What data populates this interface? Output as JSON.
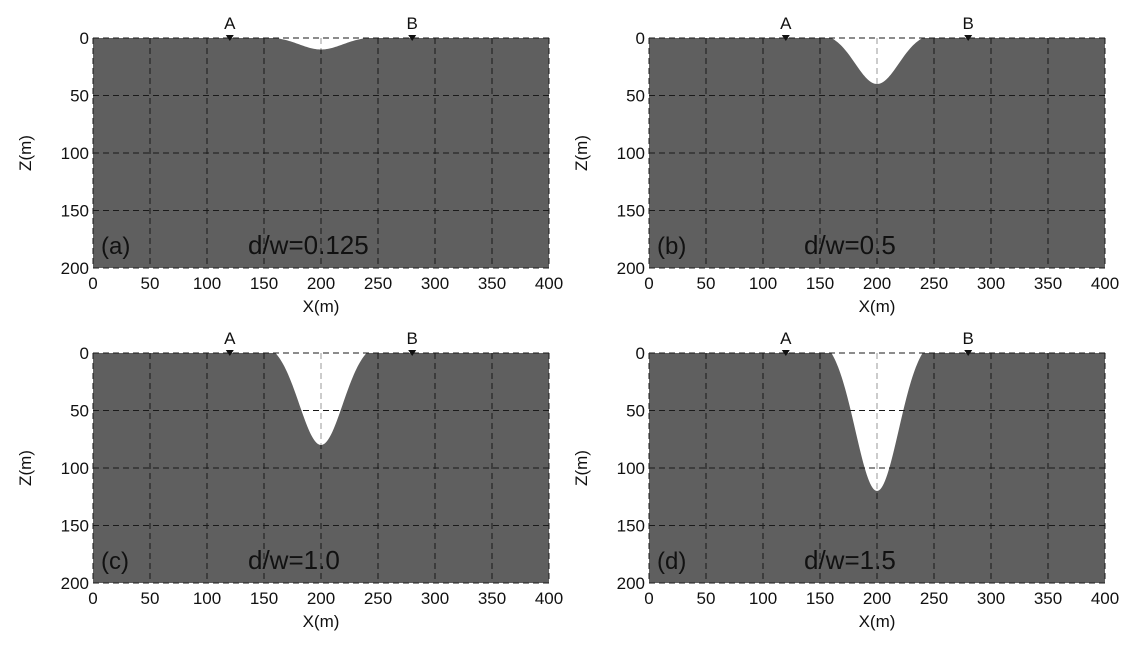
{
  "figure": {
    "colors": {
      "medium": "#5f5f5f",
      "void": "#ffffff",
      "grid": "#1a1a1a",
      "text": "#111111"
    }
  },
  "chart_data": [
    {
      "type": "area",
      "panel_label": "(a)",
      "ratio_label": "d/w=0.125",
      "xlabel": "X(m)",
      "ylabel": "Z(m)",
      "xlim": [
        0,
        400
      ],
      "ylim": [
        0,
        200
      ],
      "y_inverted": true,
      "x_ticks": [
        "0",
        "50",
        "100",
        "150",
        "200",
        "250",
        "300",
        "350",
        "400"
      ],
      "y_ticks": [
        "0",
        "50",
        "100",
        "150",
        "200"
      ],
      "grid": true,
      "markers": [
        {
          "label": "A",
          "x": 120,
          "z": 0
        },
        {
          "label": "B",
          "x": 280,
          "z": 0
        }
      ],
      "depression": {
        "center_x": 200,
        "width": 80,
        "depth": 10
      }
    },
    {
      "type": "area",
      "panel_label": "(b)",
      "ratio_label": "d/w=0.5",
      "xlabel": "X(m)",
      "ylabel": "Z(m)",
      "xlim": [
        0,
        400
      ],
      "ylim": [
        0,
        200
      ],
      "y_inverted": true,
      "x_ticks": [
        "0",
        "50",
        "100",
        "150",
        "200",
        "250",
        "300",
        "350",
        "400"
      ],
      "y_ticks": [
        "0",
        "50",
        "100",
        "150",
        "200"
      ],
      "grid": true,
      "markers": [
        {
          "label": "A",
          "x": 120,
          "z": 0
        },
        {
          "label": "B",
          "x": 280,
          "z": 0
        }
      ],
      "depression": {
        "center_x": 200,
        "width": 80,
        "depth": 40
      }
    },
    {
      "type": "area",
      "panel_label": "(c)",
      "ratio_label": "d/w=1.0",
      "xlabel": "X(m)",
      "ylabel": "Z(m)",
      "xlim": [
        0,
        400
      ],
      "ylim": [
        0,
        200
      ],
      "y_inverted": true,
      "x_ticks": [
        "0",
        "50",
        "100",
        "150",
        "200",
        "250",
        "300",
        "350",
        "400"
      ],
      "y_ticks": [
        "0",
        "50",
        "100",
        "150",
        "200"
      ],
      "grid": true,
      "markers": [
        {
          "label": "A",
          "x": 120,
          "z": 0
        },
        {
          "label": "B",
          "x": 280,
          "z": 0
        }
      ],
      "depression": {
        "center_x": 200,
        "width": 80,
        "depth": 80
      }
    },
    {
      "type": "area",
      "panel_label": "(d)",
      "ratio_label": "d/w=1.5",
      "xlabel": "X(m)",
      "ylabel": "Z(m)",
      "xlim": [
        0,
        400
      ],
      "ylim": [
        0,
        200
      ],
      "y_inverted": true,
      "x_ticks": [
        "0",
        "50",
        "100",
        "150",
        "200",
        "250",
        "300",
        "350",
        "400"
      ],
      "y_ticks": [
        "0",
        "50",
        "100",
        "150",
        "200"
      ],
      "grid": true,
      "markers": [
        {
          "label": "A",
          "x": 120,
          "z": 0
        },
        {
          "label": "B",
          "x": 280,
          "z": 0
        }
      ],
      "depression": {
        "center_x": 200,
        "width": 80,
        "depth": 120
      }
    }
  ]
}
